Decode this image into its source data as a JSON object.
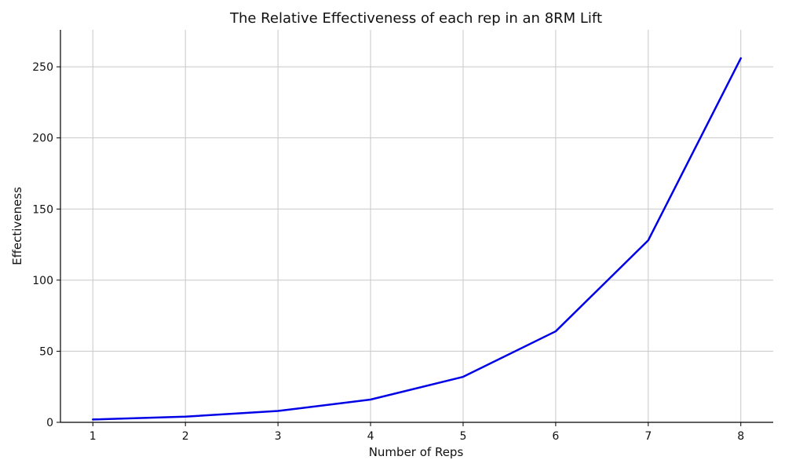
{
  "chart_data": {
    "type": "line",
    "title": "The Relative Effectiveness of each rep in an 8RM Lift",
    "xlabel": "Number of Reps",
    "ylabel": "Effectiveness",
    "x": [
      1,
      2,
      3,
      4,
      5,
      6,
      7,
      8
    ],
    "series": [
      {
        "values": [
          2,
          4,
          8,
          16,
          32,
          64,
          128,
          256
        ],
        "color": "#0000e6"
      }
    ],
    "x_ticks": [
      1,
      2,
      3,
      4,
      5,
      6,
      7,
      8
    ],
    "y_ticks": [
      0,
      50,
      100,
      150,
      200,
      250
    ],
    "xlim": [
      0.65,
      8.35
    ],
    "ylim": [
      0,
      276
    ],
    "grid": true,
    "legend": "none"
  }
}
